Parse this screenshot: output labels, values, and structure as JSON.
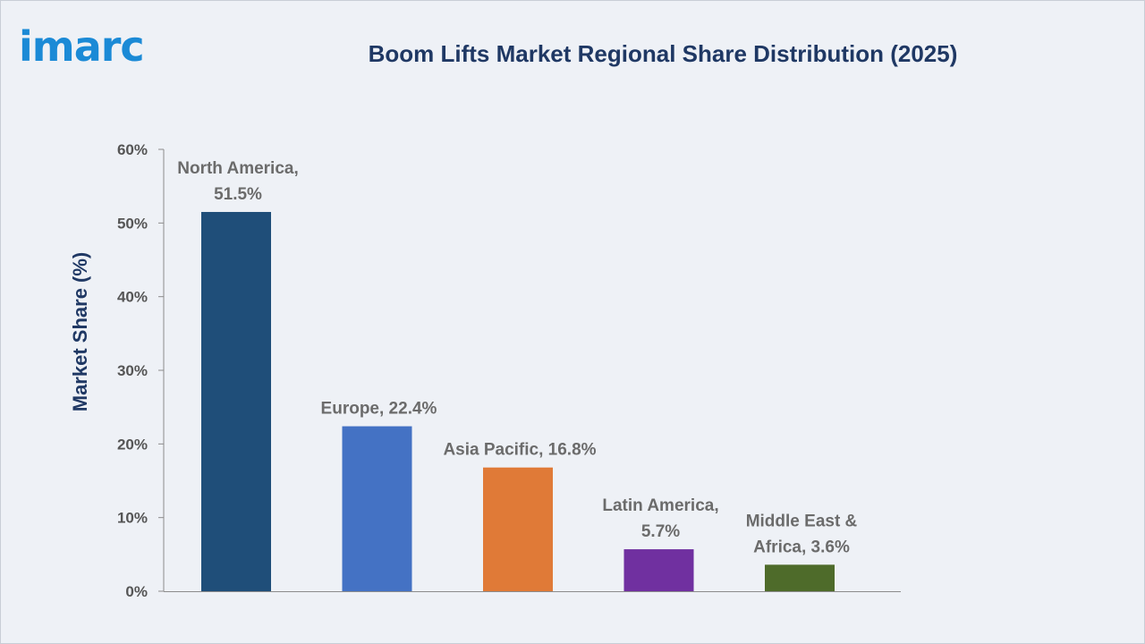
{
  "logo": {
    "text": "imarc"
  },
  "chart_data": {
    "type": "bar",
    "title": "Boom Lifts Market Regional Share Distribution (2025)",
    "xlabel": "",
    "ylabel": "Market Share (%)",
    "ylim": [
      0,
      60
    ],
    "yticks": [
      "0%",
      "10%",
      "20%",
      "30%",
      "40%",
      "50%",
      "60%"
    ],
    "ytick_values": [
      0,
      10,
      20,
      30,
      40,
      50,
      60
    ],
    "grid": false,
    "legend": "none",
    "categories": [
      "North America",
      "Europe",
      "Asia Pacific",
      "Latin America",
      "Middle East & Africa"
    ],
    "values": [
      51.5,
      22.4,
      16.8,
      5.7,
      3.6
    ],
    "data_labels": [
      [
        "North America,",
        "51.5%"
      ],
      [
        "Europe, 22.4%"
      ],
      [
        "Asia Pacific, 16.8%"
      ],
      [
        "Latin America,",
        "5.7%"
      ],
      [
        "Middle East &",
        "Africa, 3.6%"
      ]
    ],
    "colors": [
      "#1f4e79",
      "#4472c4",
      "#e07a37",
      "#7030a0",
      "#4e6b2a"
    ]
  }
}
